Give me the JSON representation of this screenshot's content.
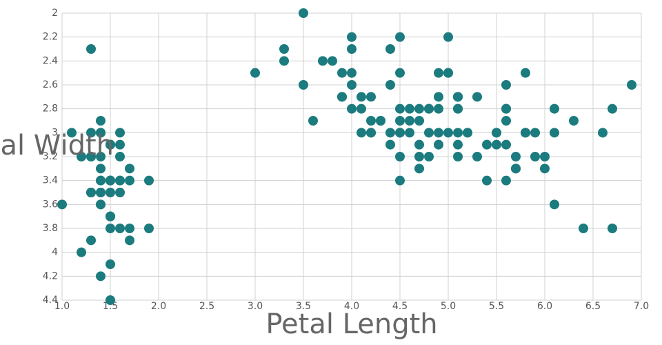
{
  "chart_data": {
    "type": "scatter",
    "x_label": "Petal Length",
    "y_label": "Sepal Width",
    "color": "#1b7b7e",
    "grid": true,
    "y_reversed": true,
    "xlim": [
      1,
      7
    ],
    "ylim": [
      2,
      4.4
    ],
    "xticks": [
      {
        "value": 1,
        "label": "1.0"
      },
      1.5,
      {
        "value": 2,
        "label": "2.0"
      },
      2.5,
      {
        "value": 3,
        "label": "3.0"
      },
      3.5,
      {
        "value": 4,
        "label": "4.0"
      },
      4.5,
      {
        "value": 5,
        "label": "5.0"
      },
      5.5,
      {
        "value": 6,
        "label": "6.0"
      },
      6.5,
      {
        "value": 7,
        "label": "7.0"
      }
    ],
    "yticks": [
      2,
      2.2,
      2.4,
      2.6,
      2.8,
      3,
      3.2,
      3.4,
      3.6,
      3.8,
      4,
      4.2,
      4.4
    ],
    "x": [
      1.4,
      1.4,
      1.3,
      1.5,
      1.4,
      1.7,
      1.4,
      1.5,
      1.4,
      1.5,
      1.5,
      1.6,
      1.4,
      1.1,
      1.2,
      1.5,
      1.3,
      1.4,
      1.7,
      1.5,
      1.7,
      1.5,
      1.0,
      1.7,
      1.9,
      1.6,
      1.6,
      1.5,
      1.4,
      1.6,
      1.6,
      1.5,
      1.5,
      1.4,
      1.5,
      1.2,
      1.3,
      1.4,
      1.3,
      1.5,
      1.3,
      1.3,
      1.3,
      1.6,
      1.9,
      1.4,
      1.6,
      1.4,
      1.5,
      1.4,
      4.7,
      4.5,
      4.9,
      4.0,
      4.6,
      4.5,
      4.7,
      3.3,
      4.6,
      3.9,
      3.5,
      4.2,
      4.0,
      4.7,
      3.6,
      4.4,
      4.5,
      4.1,
      4.5,
      3.9,
      4.8,
      4.0,
      4.9,
      4.7,
      4.3,
      4.4,
      4.8,
      5.0,
      4.5,
      3.5,
      3.8,
      3.7,
      3.9,
      5.1,
      4.5,
      4.5,
      4.7,
      4.4,
      4.1,
      4.0,
      4.4,
      4.6,
      4.0,
      3.3,
      4.2,
      4.2,
      4.2,
      4.3,
      3.0,
      4.1,
      6.0,
      5.1,
      5.9,
      5.6,
      5.8,
      6.6,
      4.5,
      6.3,
      5.8,
      6.1,
      5.1,
      5.3,
      5.5,
      5.0,
      5.1,
      5.3,
      5.5,
      6.7,
      6.9,
      5.0,
      5.7,
      4.9,
      6.7,
      4.9,
      5.7,
      6.0,
      4.8,
      4.9,
      5.6,
      5.8,
      6.1,
      6.4,
      5.6,
      5.1,
      5.6,
      6.1,
      5.6,
      5.5,
      4.8,
      5.4,
      5.6,
      5.1,
      5.1,
      5.9,
      5.7,
      5.2,
      5.0,
      5.2,
      5.4,
      5.1
    ],
    "values": [
      3.5,
      3.0,
      3.2,
      3.1,
      3.6,
      3.9,
      3.4,
      3.4,
      2.9,
      3.1,
      3.7,
      3.4,
      3.0,
      3.0,
      4.0,
      4.4,
      3.9,
      3.5,
      3.8,
      3.8,
      3.4,
      3.7,
      3.6,
      3.3,
      3.4,
      3.0,
      3.4,
      3.5,
      3.4,
      3.2,
      3.1,
      3.4,
      4.1,
      4.2,
      3.1,
      3.2,
      3.5,
      3.6,
      3.0,
      3.4,
      3.5,
      2.3,
      3.2,
      3.5,
      3.8,
      3.0,
      3.8,
      3.2,
      3.7,
      3.3,
      3.2,
      3.2,
      3.1,
      2.3,
      2.8,
      2.8,
      3.3,
      2.4,
      2.9,
      2.7,
      2.0,
      3.0,
      2.2,
      2.9,
      2.9,
      3.1,
      3.0,
      2.7,
      2.2,
      2.5,
      3.2,
      2.8,
      2.5,
      2.8,
      2.9,
      3.0,
      2.8,
      3.0,
      2.9,
      2.6,
      2.4,
      2.4,
      2.7,
      2.7,
      3.0,
      3.4,
      3.1,
      2.3,
      3.0,
      2.5,
      2.6,
      3.0,
      2.6,
      2.3,
      2.7,
      3.0,
      2.9,
      2.9,
      2.5,
      2.8,
      3.3,
      2.7,
      3.0,
      2.9,
      3.0,
      3.0,
      2.5,
      2.9,
      2.5,
      3.6,
      3.2,
      2.7,
      3.0,
      2.5,
      2.8,
      3.2,
      3.0,
      3.8,
      2.6,
      2.2,
      3.2,
      2.8,
      2.8,
      2.7,
      3.3,
      3.2,
      2.8,
      3.0,
      2.8,
      3.0,
      2.8,
      3.8,
      2.8,
      2.8,
      2.6,
      3.0,
      3.4,
      3.1,
      3.0,
      3.1,
      3.1,
      3.1,
      2.7,
      3.2,
      3.3,
      3.0,
      2.5,
      3.0,
      3.4,
      3.0
    ]
  }
}
